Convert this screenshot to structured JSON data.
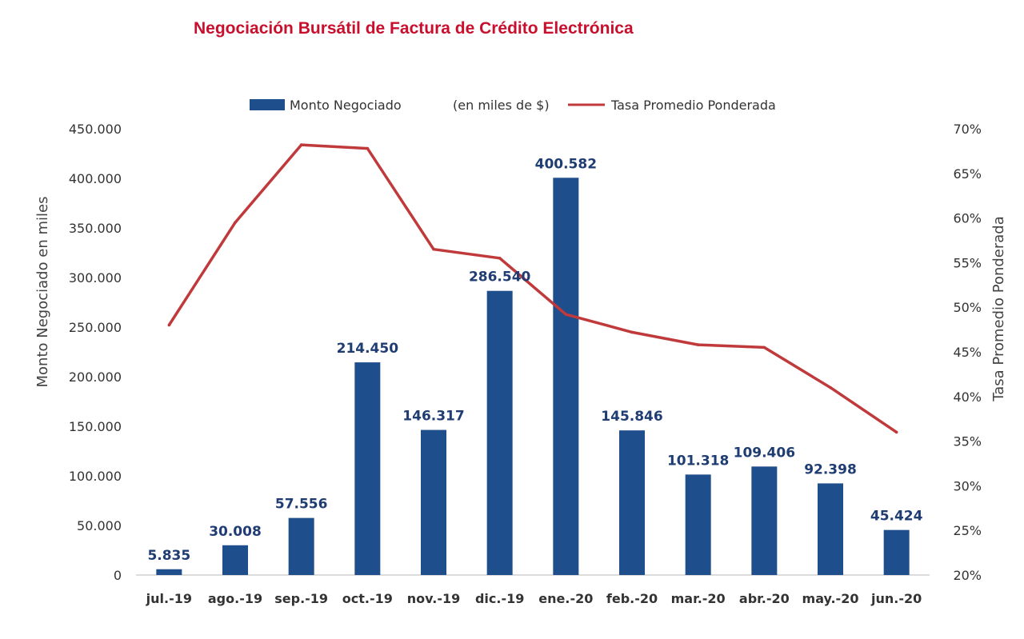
{
  "chart_data": {
    "type": "bar",
    "title": "Negociación Bursátil de Factura de Crédito Electrónica",
    "categories": [
      "jul.-19",
      "ago.-19",
      "sep.-19",
      "oct.-19",
      "nov.-19",
      "dic.-19",
      "ene.-20",
      "feb.-20",
      "mar.-20",
      "abr.-20",
      "may.-20",
      "jun.-20"
    ],
    "series": [
      {
        "name": "Monto Negociado",
        "type": "bar",
        "axis": "left",
        "color": "#1f4e8c",
        "values": [
          5835,
          30008,
          57556,
          214450,
          146317,
          286540,
          400582,
          145846,
          101318,
          109406,
          92398,
          45424
        ],
        "labels": [
          "5.835",
          "30.008",
          "57.556",
          "214.450",
          "146.317",
          "286.540",
          "400.582",
          "145.846",
          "101.318",
          "109.406",
          "92.398",
          "45.424"
        ]
      },
      {
        "name": "Tasa Promedio Ponderada",
        "type": "line",
        "axis": "right",
        "color": "#c0393b",
        "values": [
          48.0,
          59.5,
          68.2,
          67.8,
          56.5,
          55.5,
          49.2,
          47.2,
          45.8,
          45.5,
          41.0,
          36.0
        ]
      }
    ],
    "legend": {
      "position": "top",
      "entries": [
        "Monto Negociado",
        "(en miles de $)",
        "Tasa Promedio Ponderada"
      ]
    },
    "y_left": {
      "label": "Monto Negociado en miles",
      "range": [
        0,
        450000
      ],
      "ticks": [
        "0",
        "50.000",
        "100.000",
        "150.000",
        "200.000",
        "250.000",
        "300.000",
        "350.000",
        "400.000",
        "450.000"
      ]
    },
    "y_right": {
      "label": "Tasa Promedio Ponderada",
      "unit": "%",
      "range": [
        20,
        70
      ],
      "ticks": [
        "20%",
        "25%",
        "30%",
        "35%",
        "40%",
        "45%",
        "50%",
        "55%",
        "60%",
        "65%",
        "70%"
      ]
    },
    "grid": false
  }
}
